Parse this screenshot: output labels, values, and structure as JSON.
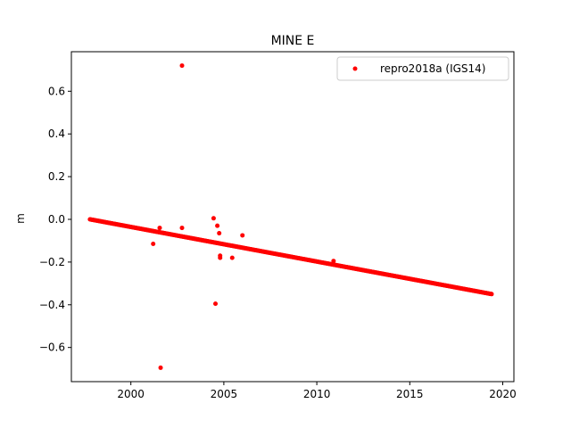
{
  "chart_data": {
    "type": "scatter",
    "title": "MINE E",
    "xlabel": "",
    "ylabel": "m",
    "xlim": [
      1996.8,
      2020.6
    ],
    "ylim": [
      -0.76,
      0.785
    ],
    "xticks": [
      2000,
      2005,
      2010,
      2015,
      2020
    ],
    "yticks": [
      -0.6,
      -0.4,
      -0.2,
      0.0,
      0.2,
      0.4,
      0.6
    ],
    "ytick_labels": [
      "−0.6",
      "−0.4",
      "−0.2",
      "0.0",
      "0.2",
      "0.4",
      "0.6"
    ],
    "grid": false,
    "legend_position": "top-right",
    "series": [
      {
        "name": "repro2018a (IGS14)",
        "color": "#ff0000",
        "trend": {
          "x_start": 1997.8,
          "x_end": 2019.4,
          "y_start": 0.0,
          "y_end": -0.35
        },
        "outliers": {
          "x": [
            2002.75,
            2001.6,
            2004.55,
            2004.45,
            2004.65,
            2004.75,
            2004.8,
            2005.45,
            2006.0,
            2001.2,
            2001.55,
            2002.75,
            2004.8,
            2010.9
          ],
          "y": [
            0.72,
            -0.695,
            -0.395,
            0.005,
            -0.03,
            -0.065,
            -0.18,
            -0.18,
            -0.075,
            -0.115,
            -0.04,
            -0.04,
            -0.17,
            -0.195
          ]
        }
      }
    ]
  }
}
